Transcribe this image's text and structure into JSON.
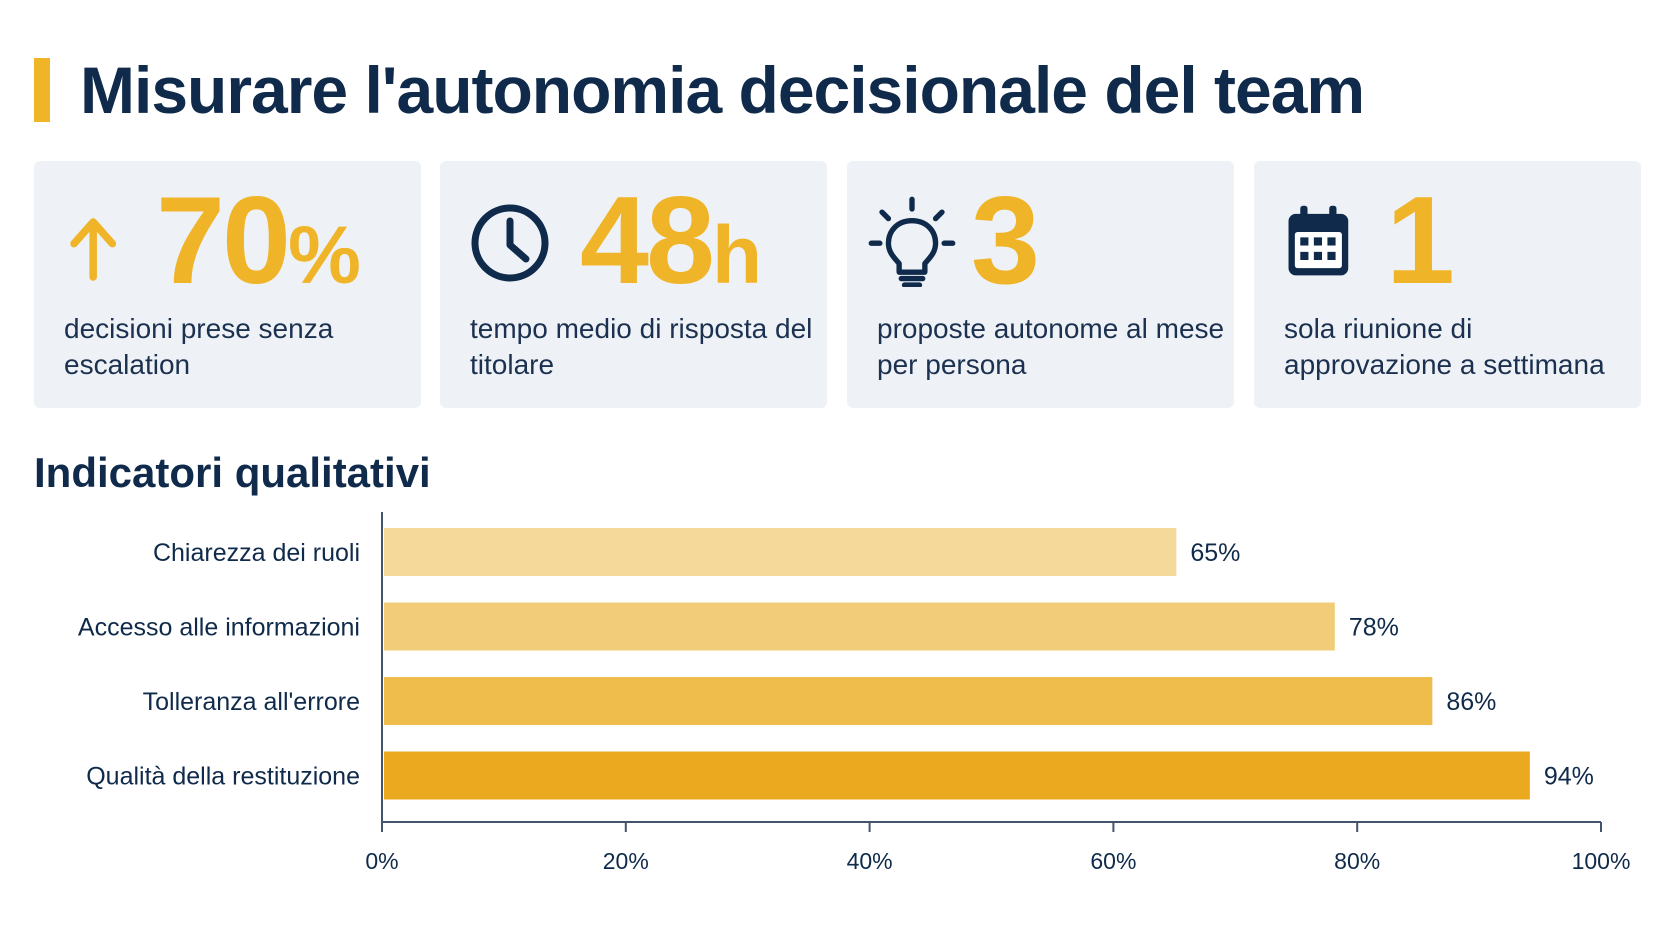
{
  "page": {
    "title": "Misurare l'autonomia decisionale del team",
    "accent_color": "#f0b428",
    "text_color": "#0f2a4a"
  },
  "kpis": [
    {
      "icon": "arrow-up-icon",
      "value": "70",
      "unit": "%",
      "label": "decisioni prese senza escalation"
    },
    {
      "icon": "clock-icon",
      "value": "48",
      "unit": "h",
      "label": "tempo medio di risposta del titolare"
    },
    {
      "icon": "lightbulb-icon",
      "value": "3",
      "unit": "",
      "label": "proposte autonome al mese per persona"
    },
    {
      "icon": "calendar-icon",
      "value": "1",
      "unit": "",
      "label": "sola riunione di approvazione a settimana"
    }
  ],
  "section": {
    "title": "Indicatori qualitativi"
  },
  "chart_data": {
    "type": "bar",
    "orientation": "horizontal",
    "categories": [
      "Chiarezza dei ruoli",
      "Accesso alle informazioni",
      "Tolleranza all'errore",
      "Qualità della restituzione"
    ],
    "values": [
      65,
      78,
      86,
      94
    ],
    "value_labels": [
      "65%",
      "78%",
      "86%",
      "94%"
    ],
    "xlim": [
      0,
      100
    ],
    "xticks": [
      0,
      20,
      40,
      60,
      80,
      100
    ],
    "xtick_labels": [
      "0%",
      "20%",
      "40%",
      "60%",
      "80%",
      "100%"
    ],
    "bar_colors": [
      "#f5d99a",
      "#f2cc78",
      "#efbd4c",
      "#eba91f"
    ],
    "grid": false,
    "legend": "none"
  }
}
